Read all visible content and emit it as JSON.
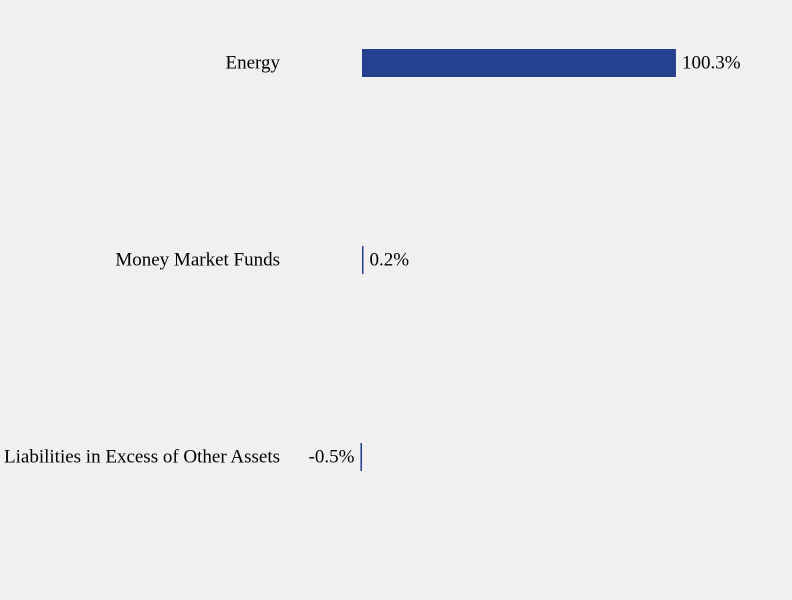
{
  "chart_data": {
    "type": "bar",
    "orientation": "horizontal",
    "categories": [
      "Energy",
      "Money Market Funds",
      "Liabilities in Excess of Other Assets"
    ],
    "values": [
      100.3,
      0.2,
      -0.5
    ],
    "value_labels": [
      "100.3%",
      "0.2%",
      "-0.5%"
    ],
    "unit": "%",
    "title": "",
    "xlabel": "",
    "ylabel": "",
    "grid": false,
    "legend": "none",
    "bar_color": "#25408f",
    "background_color": "#f0f0f0"
  }
}
